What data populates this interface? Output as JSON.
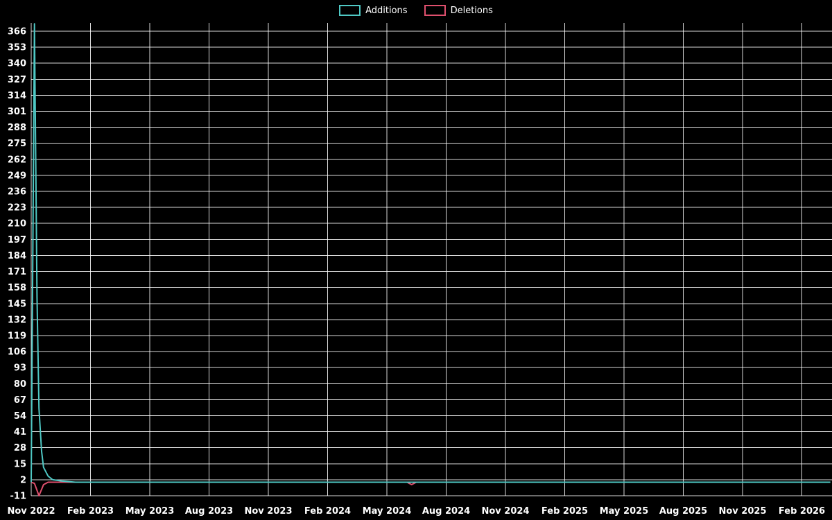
{
  "chart_data": {
    "type": "line",
    "title": "",
    "background": "#000000",
    "text_color": "#ffffff",
    "grid_color": "#ffffff",
    "grid": true,
    "legend_position": "top-center",
    "legend": [
      {
        "label": "Additions",
        "color": "#4fc8c4"
      },
      {
        "label": "Deletions",
        "color": "#e0506e"
      }
    ],
    "ylabel": "",
    "xlabel": "",
    "ylim": [
      -11,
      372
    ],
    "yticks": [
      366,
      353,
      340,
      327,
      314,
      301,
      288,
      275,
      262,
      249,
      236,
      223,
      210,
      197,
      184,
      171,
      158,
      145,
      132,
      119,
      106,
      93,
      80,
      67,
      54,
      41,
      28,
      15,
      2,
      -11
    ],
    "x_start": "2022-11-01",
    "x_end": "2026-03-16",
    "xticks": [
      {
        "label": "Nov 2022",
        "m": 0
      },
      {
        "label": "Feb 2023",
        "m": 3
      },
      {
        "label": "May 2023",
        "m": 6
      },
      {
        "label": "Aug 2023",
        "m": 9
      },
      {
        "label": "Nov 2023",
        "m": 12
      },
      {
        "label": "Feb 2024",
        "m": 15
      },
      {
        "label": "May 2024",
        "m": 18
      },
      {
        "label": "Aug 2024",
        "m": 21
      },
      {
        "label": "Nov 2024",
        "m": 24
      },
      {
        "label": "Feb 2025",
        "m": 27
      },
      {
        "label": "May 2025",
        "m": 30
      },
      {
        "label": "Aug 2025",
        "m": 33
      },
      {
        "label": "Nov 2025",
        "m": 36
      },
      {
        "label": "Feb 2026",
        "m": 39
      }
    ],
    "series": [
      {
        "name": "Deletions",
        "color": "#e0506e",
        "points": [
          [
            "2022-11-01",
            0
          ],
          [
            "2022-11-06",
            -1
          ],
          [
            "2022-11-13",
            -11
          ],
          [
            "2022-11-20",
            -2
          ],
          [
            "2022-11-27",
            0
          ],
          [
            "2024-06-02",
            0
          ],
          [
            "2024-06-09",
            -2
          ],
          [
            "2024-06-16",
            0
          ],
          [
            "2026-03-16",
            0
          ]
        ]
      },
      {
        "name": "Additions",
        "color": "#4fc8c4",
        "points": [
          [
            "2022-11-01",
            0
          ],
          [
            "2022-11-06",
            372
          ],
          [
            "2022-11-10",
            150
          ],
          [
            "2022-11-13",
            60
          ],
          [
            "2022-11-17",
            25
          ],
          [
            "2022-11-20",
            12
          ],
          [
            "2022-11-27",
            5
          ],
          [
            "2022-12-04",
            2
          ],
          [
            "2022-12-18",
            1
          ],
          [
            "2023-01-08",
            0
          ],
          [
            "2026-03-16",
            0
          ]
        ]
      }
    ]
  }
}
